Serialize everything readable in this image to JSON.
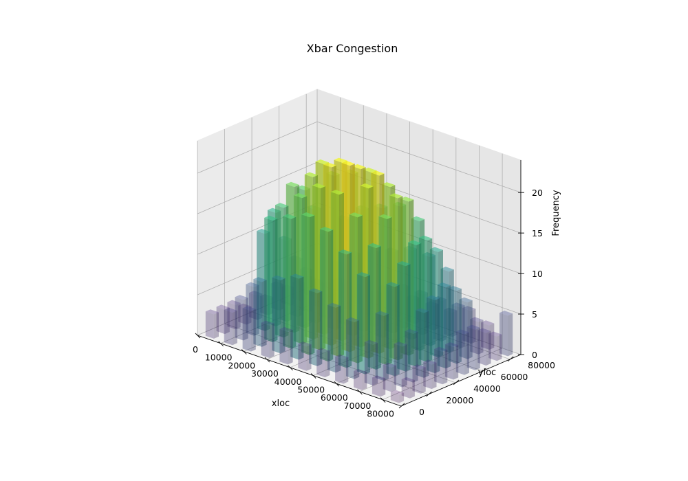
{
  "chart_data": {
    "type": "bar3d",
    "title": "Xbar Congestion",
    "xlabel": "xloc",
    "ylabel": "yloc",
    "zlabel": "Frequency",
    "xlim": [
      0,
      88000
    ],
    "ylim": [
      0,
      88000
    ],
    "zlim": [
      0,
      24
    ],
    "x_ticks": [
      0,
      10000,
      20000,
      30000,
      40000,
      50000,
      60000,
      70000,
      80000
    ],
    "x_tick_labels": [
      "0",
      "10000",
      "20000",
      "30000",
      "40000",
      "50000",
      "60000",
      "70000",
      "80000"
    ],
    "y_ticks": [
      0,
      20000,
      40000,
      60000,
      80000
    ],
    "y_tick_labels": [
      "0",
      "20000",
      "40000",
      "60000",
      "80000"
    ],
    "z_ticks": [
      0,
      5,
      10,
      15,
      20
    ],
    "z_tick_labels": [
      "0",
      "5",
      "10",
      "15",
      "20"
    ],
    "grid": true,
    "colormap": "viridis",
    "grid_x": [
      4000,
      12000,
      20000,
      28000,
      36000,
      44000,
      52000,
      60000,
      68000,
      76000,
      84000
    ],
    "grid_y": [
      4000,
      12000,
      20000,
      28000,
      36000,
      44000,
      52000,
      60000,
      68000,
      76000,
      84000
    ],
    "frequency": [
      [
        3,
        3,
        3,
        2,
        3,
        2,
        3,
        2,
        2,
        2,
        1
      ],
      [
        4,
        5,
        6,
        12,
        14,
        10,
        7,
        5,
        3,
        2,
        2
      ],
      [
        5,
        8,
        15,
        16,
        18,
        17,
        14,
        10,
        6,
        3,
        2
      ],
      [
        4,
        9,
        16,
        18,
        20,
        21,
        19,
        13,
        8,
        4,
        2
      ],
      [
        4,
        10,
        17,
        20,
        22,
        22,
        20,
        15,
        9,
        4,
        3
      ],
      [
        3,
        9,
        16,
        20,
        23,
        22,
        21,
        16,
        10,
        5,
        3
      ],
      [
        3,
        8,
        14,
        18,
        21,
        22,
        20,
        17,
        11,
        5,
        3
      ],
      [
        3,
        7,
        12,
        15,
        18,
        20,
        19,
        16,
        11,
        5,
        3
      ],
      [
        2,
        5,
        8,
        11,
        13,
        15,
        15,
        13,
        10,
        5,
        4
      ],
      [
        2,
        3,
        5,
        6,
        8,
        9,
        10,
        9,
        7,
        4,
        3
      ],
      [
        1,
        2,
        3,
        3,
        4,
        4,
        5,
        5,
        4,
        3,
        5
      ]
    ]
  }
}
